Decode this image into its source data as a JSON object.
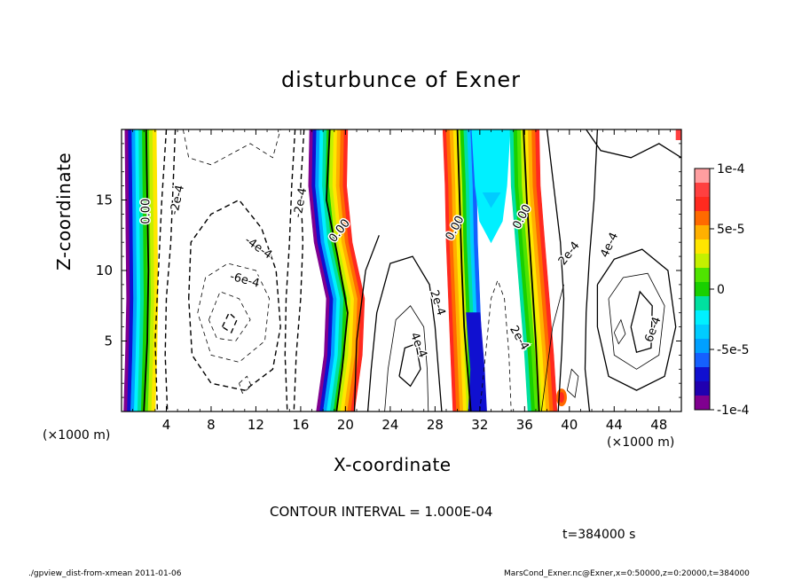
{
  "chart_data": {
    "type": "heatmap",
    "title": "disturbunce of Exner",
    "xlabel": "X-coordinate",
    "ylabel": "Z-coordinate",
    "x_unit_left": "(×1000 m)",
    "x_unit_right": "(×1000 m)",
    "xlim": [
      0,
      50
    ],
    "ylim": [
      0,
      20
    ],
    "x_ticks": [
      {
        "value": 4,
        "label": "4"
      },
      {
        "value": 8,
        "label": "8"
      },
      {
        "value": 12,
        "label": "12"
      },
      {
        "value": 16,
        "label": "16"
      },
      {
        "value": 20,
        "label": "20"
      },
      {
        "value": 24,
        "label": "24"
      },
      {
        "value": 28,
        "label": "28"
      },
      {
        "value": 32,
        "label": "32"
      },
      {
        "value": 36,
        "label": "36"
      },
      {
        "value": 40,
        "label": "40"
      },
      {
        "value": 44,
        "label": "44"
      },
      {
        "value": 48,
        "label": "48"
      }
    ],
    "y_ticks": [
      {
        "value": 5,
        "label": "5"
      },
      {
        "value": 10,
        "label": "10"
      },
      {
        "value": 15,
        "label": "15"
      }
    ],
    "colorbar": {
      "min": -0.0001,
      "max": 0.0001,
      "ticks": [
        {
          "value": 0.0001,
          "label": "1e-4"
        },
        {
          "value": 5e-05,
          "label": "5e-5"
        },
        {
          "value": 0,
          "label": "0"
        },
        {
          "value": -5e-05,
          "label": "-5e-5"
        },
        {
          "value": -0.0001,
          "label": "-1e-4"
        }
      ],
      "colors": [
        "#ff9ea0",
        "#ff4040",
        "#ff2a1f",
        "#ff6a00",
        "#ffb000",
        "#ffe600",
        "#c4f000",
        "#4fe400",
        "#19d000",
        "#00e0a0",
        "#00f0ff",
        "#00ccff",
        "#00a0ff",
        "#1560ff",
        "#1010d0",
        "#2000b0",
        "#800090"
      ]
    },
    "contour_labels": [
      {
        "x": 2.2,
        "z": 14.2,
        "text": "0.00",
        "angle": -90
      },
      {
        "x": 5.0,
        "z": 15.0,
        "text": "-2e-4",
        "angle": -78
      },
      {
        "x": 12.2,
        "z": 11.6,
        "text": "-4e-4",
        "angle": 35
      },
      {
        "x": 11.0,
        "z": 9.3,
        "text": "-6e-4",
        "angle": 15
      },
      {
        "x": 16.0,
        "z": 14.8,
        "text": "-2e-4",
        "angle": -80
      },
      {
        "x": 19.5,
        "z": 12.8,
        "text": "0.00",
        "angle": -52
      },
      {
        "x": 28.2,
        "z": 7.7,
        "text": "2e-4",
        "angle": 72
      },
      {
        "x": 26.5,
        "z": 4.7,
        "text": "4e-4",
        "angle": 68
      },
      {
        "x": 29.8,
        "z": 13.0,
        "text": "0.00",
        "angle": -62
      },
      {
        "x": 35.8,
        "z": 13.8,
        "text": "0.00",
        "angle": -62
      },
      {
        "x": 40.0,
        "z": 11.2,
        "text": "2e-4",
        "angle": -52
      },
      {
        "x": 43.6,
        "z": 11.8,
        "text": "4e-4",
        "angle": -65
      },
      {
        "x": 47.5,
        "z": 5.8,
        "text": "6e-4",
        "angle": -70
      },
      {
        "x": 35.5,
        "z": 5.2,
        "text": "2e-4",
        "angle": 60
      }
    ],
    "grid": false,
    "legend": "colorbar-right"
  },
  "annotations": {
    "contour_interval": "CONTOUR INTERVAL = 1.000E-04",
    "time": "t=384000 s",
    "footer_left": "./gpview_dist-from-xmean  2011-01-06",
    "footer_right": "MarsCond_Exner.nc@Exner,x=0:50000,z=0:20000,t=384000"
  }
}
